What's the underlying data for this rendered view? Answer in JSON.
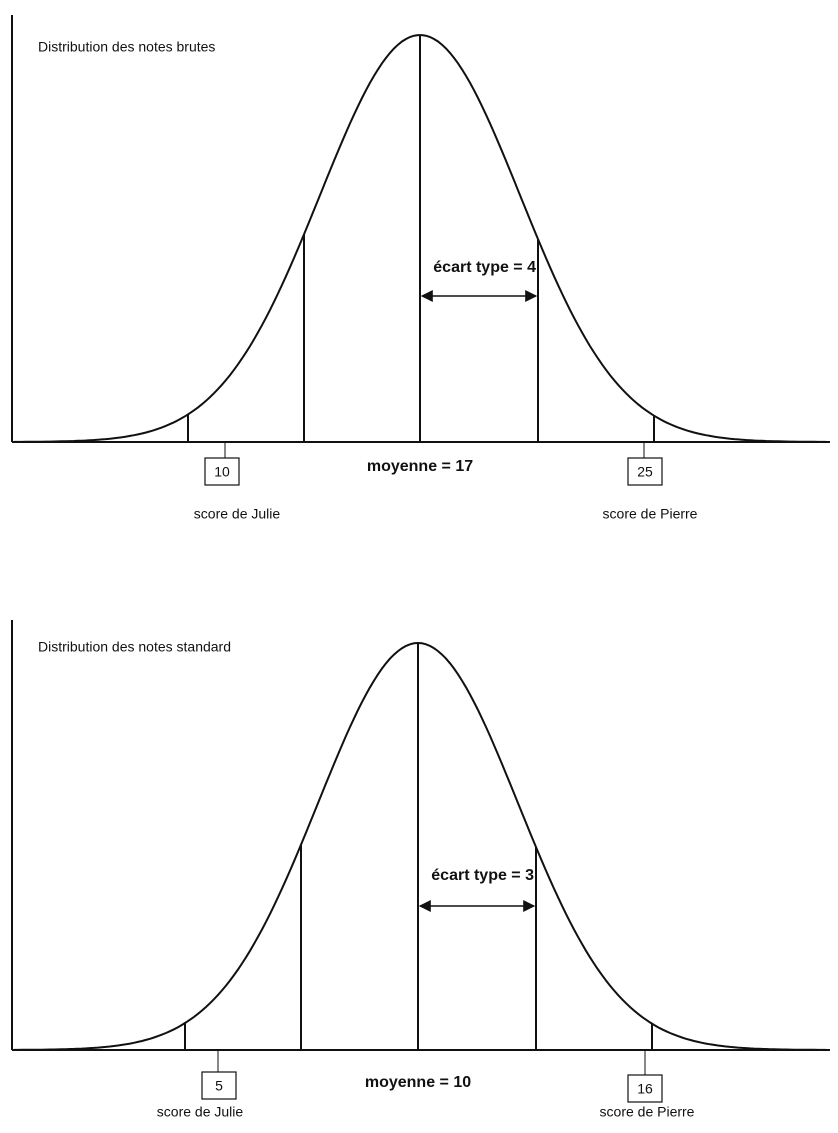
{
  "panels": [
    {
      "title": "Distribution des notes brutes",
      "sd_label": "écart type = 4",
      "mean_label": "moyenne = 17",
      "julie_score": "10",
      "pierre_score": "25",
      "julie_label": "score de Julie",
      "pierre_label": "score de Pierre"
    },
    {
      "title": "Distribution des notes standard",
      "sd_label": "écart type = 3",
      "mean_label": "moyenne = 10",
      "julie_score": "5",
      "pierre_score": "16",
      "julie_label": "score de Julie",
      "pierre_label": "score de Pierre"
    }
  ]
}
